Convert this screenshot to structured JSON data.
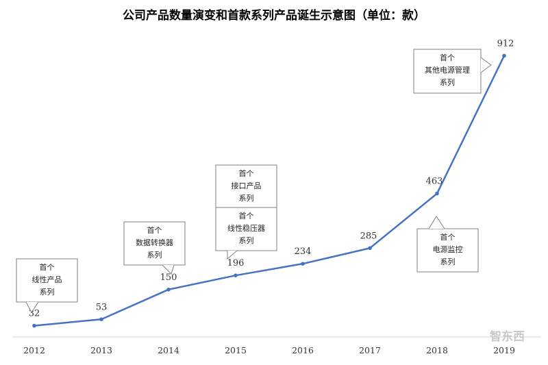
{
  "title": "公司产品数量演变和首款系列产品诞生示意图（单位：款）",
  "chart_data": {
    "type": "line",
    "categories": [
      "2012",
      "2013",
      "2014",
      "2015",
      "2016",
      "2017",
      "2018",
      "2019"
    ],
    "values": [
      32,
      53,
      150,
      196,
      234,
      285,
      463,
      912
    ],
    "series_color": "#4472c4",
    "annotations": [
      {
        "year": "2012",
        "lines": [
          "首个",
          "线性产品",
          "系列"
        ]
      },
      {
        "year": "2014",
        "lines": [
          "首个",
          "数据转换器",
          "系列"
        ]
      },
      {
        "year": "2015",
        "lines": [
          "首个",
          "接口产品",
          "系列"
        ]
      },
      {
        "year": "2015",
        "lines": [
          "首个",
          "线性稳压器",
          "系列"
        ]
      },
      {
        "year": "2018",
        "lines": [
          "首个",
          "电源监控",
          "系列"
        ]
      },
      {
        "year": "2019",
        "lines": [
          "首个",
          "其他电源管理",
          "系列"
        ]
      }
    ]
  },
  "watermark": "智东西"
}
